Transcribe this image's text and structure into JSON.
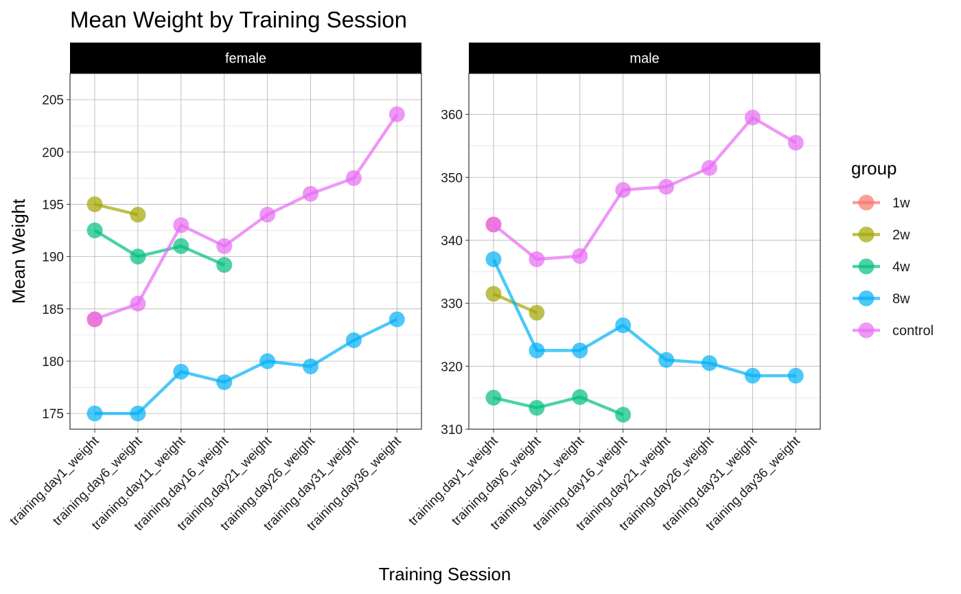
{
  "chart_data": {
    "type": "line",
    "title": "Mean Weight by Training Session",
    "xlabel": "Training Session",
    "ylabel": "Mean Weight",
    "categories": [
      "training.day1_weight",
      "training.day6_weight",
      "training.day11_weight",
      "training.day16_weight",
      "training.day21_weight",
      "training.day26_weight",
      "training.day31_weight",
      "training.day36_weight"
    ],
    "grid": true,
    "legend": {
      "title": "group",
      "placement": "right",
      "entries": [
        "1w",
        "2w",
        "4w",
        "8w",
        "control"
      ]
    },
    "colors": {
      "1w": "#F8766D",
      "2w": "#A3A500",
      "4w": "#00BF7D",
      "8w": "#00B0F6",
      "control": "#E76BF3"
    },
    "panels": [
      {
        "label": "female",
        "ylim": [
          173.5,
          207.5
        ],
        "yticks": [
          175,
          180,
          185,
          190,
          195,
          200,
          205
        ],
        "series": [
          {
            "name": "1w",
            "values": [
              184,
              null,
              null,
              null,
              null,
              null,
              null,
              null
            ]
          },
          {
            "name": "2w",
            "values": [
              195,
              194,
              null,
              null,
              null,
              null,
              null,
              null
            ]
          },
          {
            "name": "4w",
            "values": [
              192.5,
              190,
              191,
              189.2,
              null,
              null,
              null,
              null
            ]
          },
          {
            "name": "8w",
            "values": [
              175,
              175,
              179,
              178,
              180,
              179.5,
              182,
              184
            ]
          },
          {
            "name": "control",
            "values": [
              184,
              185.5,
              193,
              191,
              194,
              196,
              197.5,
              203.6
            ]
          }
        ]
      },
      {
        "label": "male",
        "ylim": [
          310,
          366.5
        ],
        "yticks": [
          310,
          320,
          330,
          340,
          350,
          360
        ],
        "series": [
          {
            "name": "1w",
            "values": [
              342.5,
              null,
              null,
              null,
              null,
              null,
              null,
              null
            ]
          },
          {
            "name": "2w",
            "values": [
              331.5,
              328.5,
              null,
              null,
              null,
              null,
              null,
              null
            ]
          },
          {
            "name": "4w",
            "values": [
              315,
              313.4,
              315.1,
              312.3,
              null,
              null,
              null,
              null
            ]
          },
          {
            "name": "8w",
            "values": [
              337,
              322.5,
              322.5,
              326.5,
              321,
              320.5,
              318.5,
              318.5
            ]
          },
          {
            "name": "control",
            "values": [
              342.5,
              337,
              337.5,
              348,
              348.5,
              351.5,
              359.5,
              355.5
            ]
          }
        ]
      }
    ]
  }
}
